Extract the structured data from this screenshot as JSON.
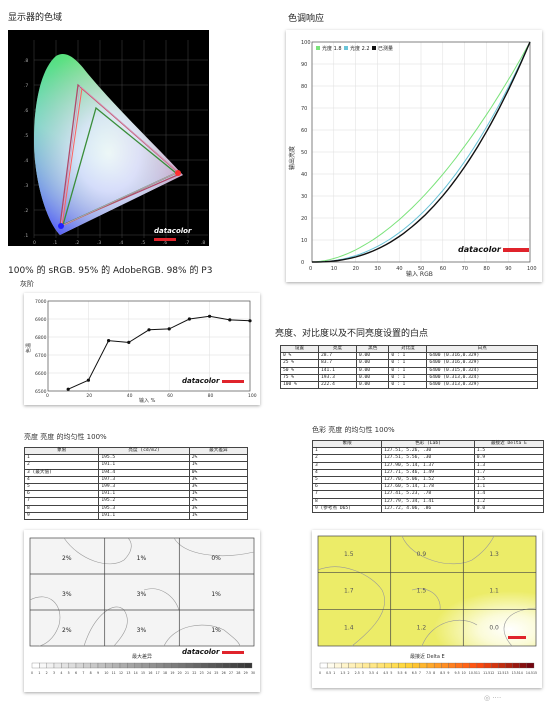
{
  "titles": {
    "gamut": "显示器的色域",
    "gamma": "色调响应",
    "gamut_caption": "100% 的 sRGB. 95% 的 AdobeRGB. 98% 的 P3",
    "grayscale": "灰阶",
    "whitepoint": "亮度、对比度以及不同亮度设置的白点",
    "lum_uniformity": "亮度 亮度 的均匀性 100%",
    "color_uniformity": "色彩 亮度 的均匀性 100%"
  },
  "brand": "datacolor",
  "icons": {
    "logo_bar": "red-bar-icon"
  },
  "colors": {
    "brand_red": "#e0232b",
    "srgb": "#3a8e3a",
    "adobe": "#b04a6a",
    "p3": "#ff6060"
  },
  "gamut_chart": {
    "x_ticks": [
      "0",
      ".1",
      ".2",
      ".3",
      ".4",
      ".5",
      ".6",
      ".7",
      ".8"
    ],
    "y_ticks": [
      ".8",
      ".7",
      ".6",
      ".5",
      ".4",
      ".3",
      ".2",
      ".1"
    ]
  },
  "chart_data": [
    {
      "type": "line",
      "id": "gamma",
      "xlabel": "输入 RGB",
      "ylabel": "输出亮度",
      "xlim": [
        0,
        100
      ],
      "ylim": [
        0,
        100
      ],
      "ticks": [
        "0",
        "10",
        "20",
        "30",
        "40",
        "50",
        "60",
        "70",
        "80",
        "90",
        "100"
      ],
      "series": [
        {
          "name": "光度 1.8",
          "color": "#7be37b",
          "gamma": 1.8
        },
        {
          "name": "光度 2.2",
          "color": "#6ac4d8",
          "gamma": 2.2
        },
        {
          "name": "已测量",
          "color": "#111111",
          "gamma": 2.35
        }
      ]
    },
    {
      "type": "line",
      "id": "grayscale",
      "xlabel": "输入 %",
      "ylabel": "色温",
      "x_ticks": [
        "0",
        "20",
        "40",
        "60",
        "80",
        "100"
      ],
      "y_ticks": [
        "6500",
        "6600",
        "6700",
        "6800",
        "6900",
        "7000"
      ],
      "x": [
        10,
        20,
        30,
        40,
        50,
        60,
        70,
        80,
        90,
        100
      ],
      "values": [
        6510,
        6560,
        6780,
        6770,
        6840,
        6845,
        6900,
        6915,
        6895,
        6890
      ]
    },
    {
      "type": "table",
      "id": "whitepoint",
      "headers": [
        "设置",
        "亮度",
        "黑色",
        "对比度",
        "白点"
      ],
      "rows": [
        [
          "0 %",
          "28.7",
          "0.00",
          "0 : 1",
          "6400 (0.316,0.329)"
        ],
        [
          "25 %",
          "83.7",
          "0.00",
          "0 : 1",
          "6400 (0.316,0.329)"
        ],
        [
          "50 %",
          "141.1",
          "0.00",
          "0 : 1",
          "6400 (0.315,0.324)"
        ],
        [
          "75 %",
          "193.3",
          "0.00",
          "0 : 1",
          "6400 (0.313,0.324)"
        ],
        [
          "100 %",
          "222.4",
          "0.00",
          "0 : 1",
          "6400 (0.313,0.329)"
        ]
      ]
    },
    {
      "type": "table",
      "id": "lum_table",
      "headers": [
        "象限",
        "亮度 (cd/m2)",
        "最大差异"
      ],
      "rows": [
        [
          "1",
          "195.5",
          "2%"
        ],
        [
          "2",
          "191.1",
          "1%"
        ],
        [
          "3 (最大值)",
          "194.4",
          "0%"
        ],
        [
          "4",
          "197.3",
          "3%"
        ],
        [
          "5",
          "199.3",
          "3%"
        ],
        [
          "6",
          "191.1",
          "1%"
        ],
        [
          "7",
          "195.2",
          "2%"
        ],
        [
          "8",
          "195.3",
          "3%"
        ],
        [
          "9",
          "191.1",
          "1%"
        ]
      ]
    },
    {
      "type": "table",
      "id": "color_table",
      "headers": [
        "象限",
        "色彩 (Lab)",
        "最接近 Delta E"
      ],
      "rows": [
        [
          "1",
          "127.51, 5.26, .30",
          "1.5"
        ],
        [
          "2",
          "127.51, 5.56, .30",
          "0.9"
        ],
        [
          "3",
          "127.90, 5.14, 1.37",
          "1.3"
        ],
        [
          "4",
          "127.71, 5.46, 1.49",
          "1.7"
        ],
        [
          "5",
          "127.70, 5.06, 1.52",
          "1.5"
        ],
        [
          "6",
          "127.60, 5.14, 1.78",
          "1.1"
        ],
        [
          "7",
          "127.41, 5.23, .78",
          "1.4"
        ],
        [
          "8",
          "127.79, 5.34, 1.41",
          "1.2"
        ],
        [
          "9 (参考点 D65)",
          "127.72, 4.06, .86",
          "0.0"
        ]
      ]
    },
    {
      "type": "heatmap",
      "id": "lum_grid",
      "values": [
        "2%",
        "1%",
        "0%",
        "3%",
        "3%",
        "1%",
        "2%",
        "3%",
        "1%"
      ],
      "scale_label": "最大差异",
      "scale_ticks": [
        "0",
        "1",
        "2",
        "3",
        "4",
        "5",
        "6",
        "7",
        "8",
        "9",
        "10",
        "11",
        "12",
        "13",
        "14",
        "15",
        "16",
        "17",
        "18",
        "19",
        "20",
        "21",
        "22",
        "23",
        "24",
        "25",
        "26",
        "27",
        "28",
        "29",
        "30"
      ]
    },
    {
      "type": "heatmap",
      "id": "color_grid",
      "values": [
        "1.5",
        "0.9",
        "1.3",
        "1.7",
        "1.5",
        "1.1",
        "1.4",
        "1.2",
        "0.0"
      ],
      "scale_label": "最接近 Delta E",
      "scale_ticks": [
        "0",
        "0.5",
        "1",
        "1.5",
        "2",
        "2.5",
        "3",
        "3.5",
        "4",
        "4.5",
        "5",
        "5.5",
        "6",
        "6.5",
        "7",
        "7.5",
        "8",
        "8.5",
        "9",
        "9.5",
        "10",
        "10.5",
        "11",
        "11.5",
        "12",
        "12.5",
        "13",
        "13.5",
        "14",
        "14.5",
        "15"
      ]
    }
  ]
}
